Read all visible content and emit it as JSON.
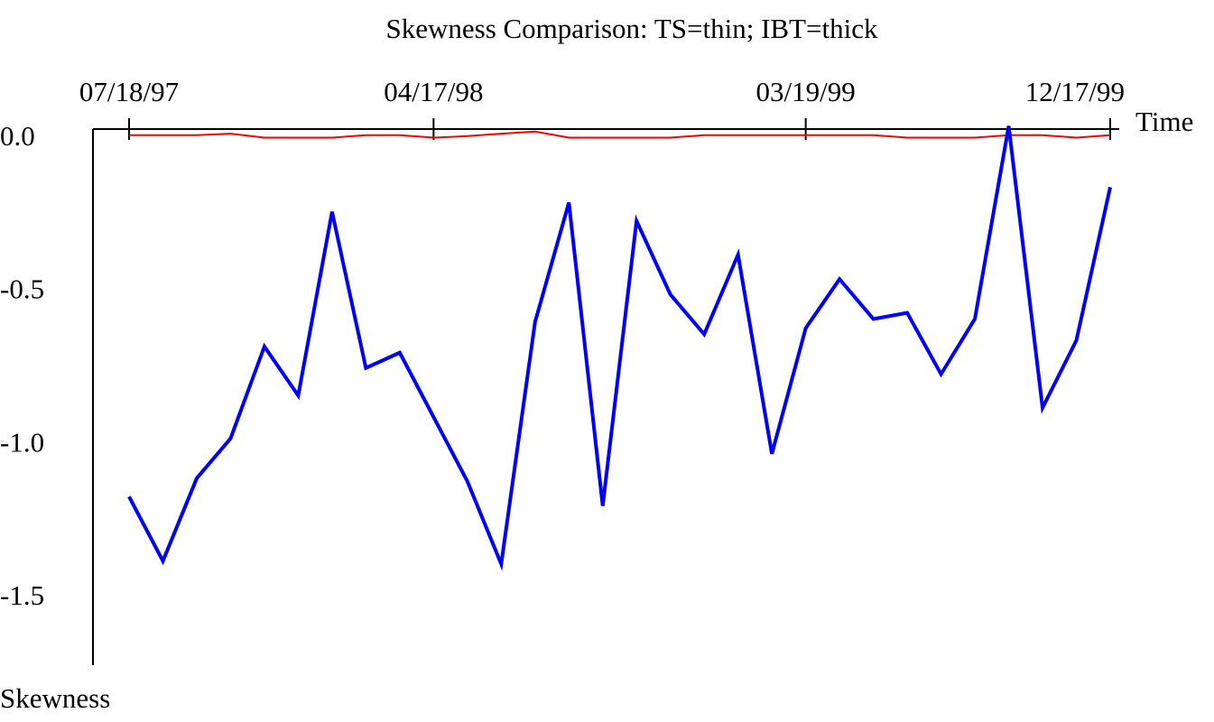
{
  "chart_data": {
    "type": "line",
    "title": "Skewness Comparison: TS=thin; IBT=thick",
    "x_label": "Time",
    "y_label": "Skewness",
    "categories": [
      "07/18/97",
      null,
      null,
      null,
      null,
      null,
      null,
      null,
      null,
      "04/17/98",
      null,
      null,
      null,
      null,
      null,
      null,
      null,
      null,
      null,
      null,
      "03/19/99",
      null,
      null,
      null,
      null,
      null,
      null,
      null,
      null,
      "12/17/99"
    ],
    "series": [
      {
        "color": "#ff0000",
        "width": 2,
        "values": [
          0,
          0,
          0,
          0.005,
          -0.008,
          -0.008,
          -0.008,
          0,
          0,
          -0.008,
          -0.003,
          0.005,
          0.012,
          -0.008,
          -0.008,
          -0.008,
          -0.008,
          0,
          0,
          0,
          0,
          0,
          0,
          -0.008,
          -0.008,
          -0.008,
          0,
          0,
          -0.008,
          0
        ]
      },
      {
        "color": "#0000ff",
        "width": 4,
        "values": [
          -1.18,
          -1.39,
          -1.12,
          -0.99,
          -0.69,
          -0.85,
          -0.25,
          -0.76,
          -0.71,
          -0.92,
          -1.13,
          -1.4,
          -0.61,
          -0.22,
          -1.21,
          -0.28,
          -0.52,
          -0.65,
          -0.39,
          -1.04,
          -0.63,
          -0.47,
          -0.6,
          -0.58,
          -0.78,
          -0.6,
          0.03,
          -0.89,
          -0.67,
          -0.17
        ]
      }
    ],
    "ylim": [
      -1.73,
      0.02
    ],
    "yticks": [
      {
        "value": 0,
        "label": "0.0"
      },
      -0.5,
      {
        "value": -1,
        "label": "-1.0"
      },
      -1.5
    ],
    "grid": false
  }
}
